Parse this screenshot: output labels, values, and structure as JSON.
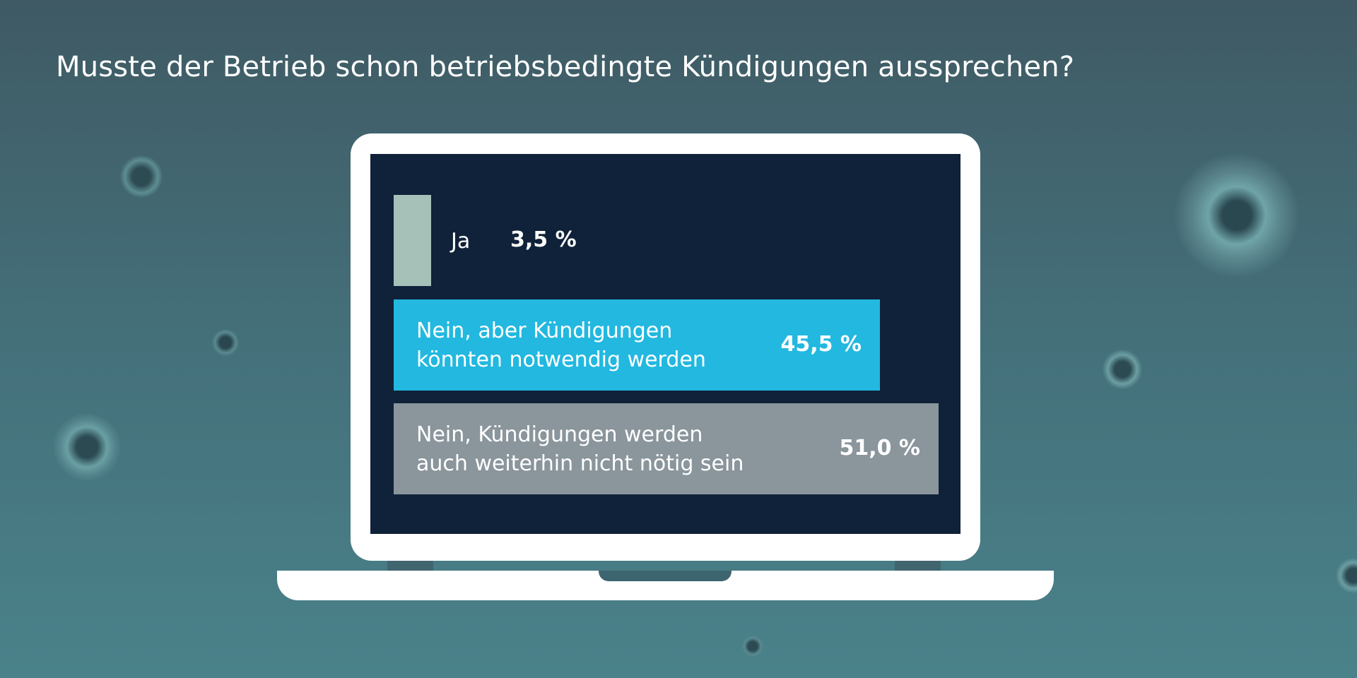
{
  "title": "Musste der Betrieb schon betriebsbedingte Kündigungen aussprechen?",
  "colors": {
    "background_top": "#3f5a64",
    "background_bottom": "#4a828a",
    "screen": "#0f2239",
    "laptop": "#ffffff",
    "bar_ja": "#a6c1b8",
    "bar_nein_aber": "#22b8e0",
    "bar_nein": "#8a959c"
  },
  "chart_data": {
    "type": "bar",
    "orientation": "horizontal",
    "title": "Musste der Betrieb schon betriebsbedingte Kündigungen aussprechen?",
    "categories": [
      [
        "Ja"
      ],
      [
        "Nein, aber Kündigungen",
        "könnten notwendig werden"
      ],
      [
        "Nein, Kündigungen werden",
        "auch weiterhin nicht nötig sein"
      ]
    ],
    "values": [
      3.5,
      45.5,
      51.0
    ],
    "value_labels": [
      "3,5 %",
      "45,5 %",
      "51,0 %"
    ],
    "xlim": [
      0,
      51
    ],
    "grid": false,
    "legend": "none"
  }
}
